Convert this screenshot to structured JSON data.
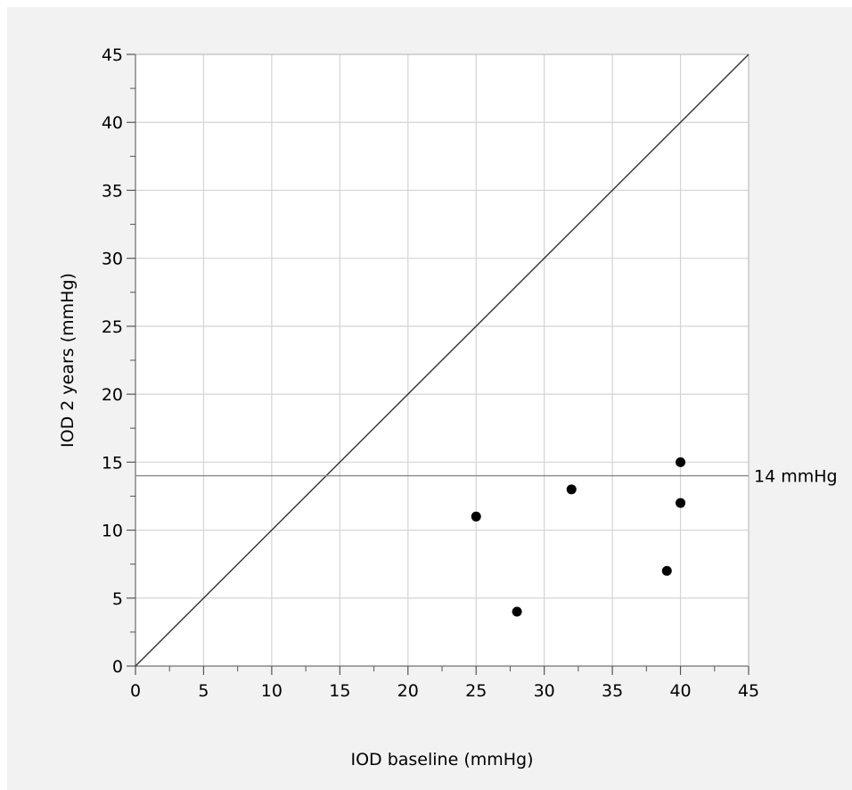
{
  "chart_data": {
    "type": "scatter",
    "title": "",
    "xlabel": "IOD baseline (mmHg)",
    "ylabel": "IOD 2 years (mmHg)",
    "xlim": [
      0,
      45
    ],
    "ylim": [
      0,
      45
    ],
    "xticks": [
      "0",
      "5",
      "10",
      "15",
      "20",
      "25",
      "30",
      "35",
      "40",
      "45"
    ],
    "yticks": [
      "0",
      "5",
      "10",
      "15",
      "20",
      "25",
      "30",
      "35",
      "40",
      "45"
    ],
    "grid": true,
    "points": [
      {
        "x": 25,
        "y": 11
      },
      {
        "x": 28,
        "y": 4
      },
      {
        "x": 32,
        "y": 13
      },
      {
        "x": 39,
        "y": 7
      },
      {
        "x": 40,
        "y": 15
      },
      {
        "x": 40,
        "y": 12
      }
    ],
    "identity_line": true,
    "reference_line": {
      "y": 14,
      "label": "14 mmHg"
    },
    "colors": {
      "background": "#f2f2f2",
      "plot_bg": "#ffffff",
      "grid": "#d4d4d4",
      "point": "#000000"
    }
  }
}
